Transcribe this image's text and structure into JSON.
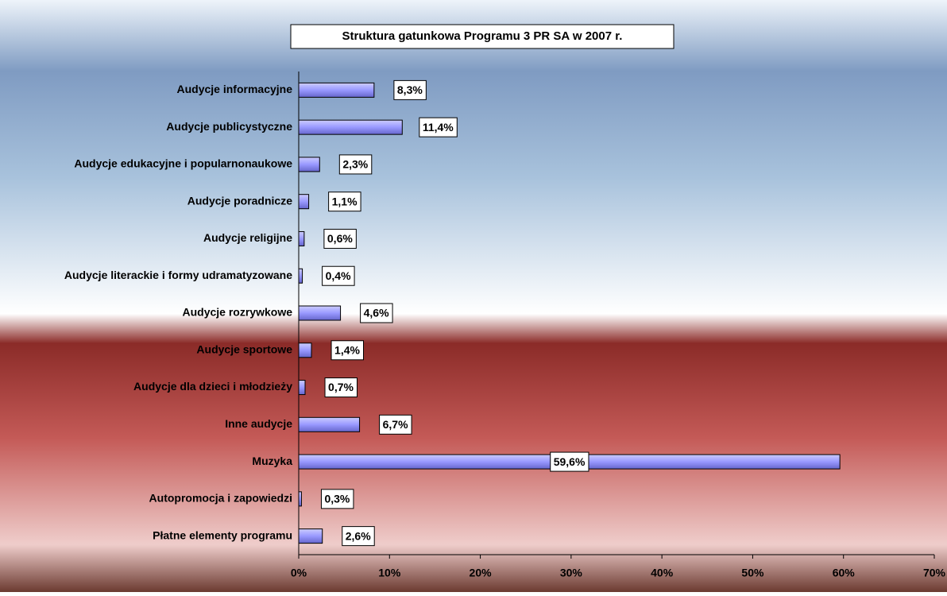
{
  "chart_data": {
    "type": "bar",
    "orientation": "horizontal",
    "title": "Struktura gatunkowa Programu 3 PR SA w 2007 r.",
    "categories": [
      "Audycje informacyjne",
      "Audycje publicystyczne",
      "Audycje edukacyjne i popularnonaukowe",
      "Audycje poradnicze",
      "Audycje religijne",
      "Audycje literackie i formy udramatyzowane",
      "Audycje rozrywkowe",
      "Audycje sportowe",
      "Audycje dla dzieci i młodzieży",
      "Inne audycje",
      "Muzyka",
      "Autopromocja i zapowiedzi",
      "Płatne elementy programu"
    ],
    "values": [
      8.3,
      11.4,
      2.3,
      1.1,
      0.6,
      0.4,
      4.6,
      1.4,
      0.7,
      6.7,
      59.6,
      0.3,
      2.6
    ],
    "value_labels": [
      "8,3%",
      "11,4%",
      "2,3%",
      "1,1%",
      "0,6%",
      "0,4%",
      "4,6%",
      "1,4%",
      "0,7%",
      "6,7%",
      "59,6%",
      "0,3%",
      "2,6%"
    ],
    "color": "#9999ff",
    "xlim": [
      0,
      70
    ],
    "xticks": [
      {
        "value": 0,
        "label": "0%"
      },
      {
        "value": 10,
        "label": "10%"
      },
      {
        "value": 20,
        "label": "20%"
      },
      {
        "value": 30,
        "label": "30%"
      },
      {
        "value": 40,
        "label": "40%"
      },
      {
        "value": 50,
        "label": "50%"
      },
      {
        "value": 60,
        "label": "60%"
      },
      {
        "value": 70,
        "label": "70%"
      }
    ]
  }
}
